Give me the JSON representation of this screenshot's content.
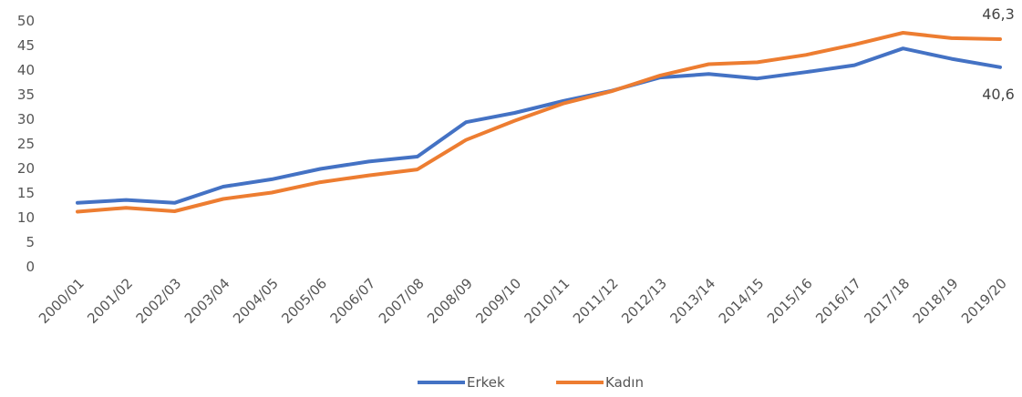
{
  "chart_data": {
    "type": "line",
    "categories": [
      "2000/01",
      "2001/02",
      "2002/03",
      "2003/04",
      "2004/05",
      "2005/06",
      "2006/07",
      "2007/08",
      "2008/09",
      "2009/10",
      "2010/11",
      "2011/12",
      "2012/13",
      "2013/14",
      "2014/15",
      "2015/16",
      "2016/17",
      "2017/18",
      "2018/19",
      "2019/20"
    ],
    "series": [
      {
        "name": "Erkek",
        "color": "#4472C4",
        "values": [
          13.0,
          13.6,
          13.0,
          16.3,
          17.8,
          19.9,
          21.4,
          22.4,
          29.4,
          31.3,
          33.7,
          35.8,
          38.5,
          39.2,
          38.3,
          39.6,
          41.0,
          44.4,
          42.3,
          40.6
        ]
      },
      {
        "name": "Kadın",
        "color": "#ED7D31",
        "values": [
          11.2,
          12.0,
          11.3,
          13.8,
          15.1,
          17.2,
          18.6,
          19.8,
          25.8,
          29.7,
          33.2,
          35.7,
          38.9,
          41.2,
          41.6,
          43.1,
          45.2,
          47.6,
          46.5,
          46.3
        ]
      }
    ],
    "yticks": [
      0,
      5,
      10,
      15,
      20,
      25,
      30,
      35,
      40,
      45,
      50
    ],
    "ylim": [
      0,
      50
    ],
    "grid": false,
    "legend": "bottom",
    "end_labels": {
      "Erkek": "40,6",
      "Kadın": "46,3"
    }
  }
}
